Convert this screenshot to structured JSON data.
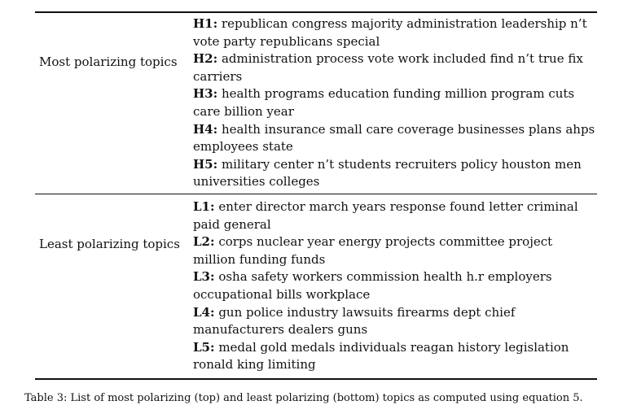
{
  "table": {
    "top_section": {
      "label": "Most polarizing topics",
      "topics": [
        {
          "id": "H1:",
          "words": "republican congress majority administration leadership n’t vote party republicans special"
        },
        {
          "id": "H2:",
          "words": "administration process vote work included find n’t true fix carriers"
        },
        {
          "id": "H3:",
          "words": "health programs education funding million program cuts care billion year"
        },
        {
          "id": "H4:",
          "words": "health insurance small care coverage businesses plans ahps employees state"
        },
        {
          "id": "H5:",
          "words": "military center n’t students recruiters policy houston men universities colleges"
        }
      ]
    },
    "bottom_section": {
      "label": "Least polarizing topics",
      "topics": [
        {
          "id": "L1:",
          "words": "enter director march years response found letter criminal paid general"
        },
        {
          "id": "L2:",
          "words": "corps nuclear year energy projects committee project million funding funds"
        },
        {
          "id": "L3:",
          "words": "osha safety workers commission health h.r employers occupational bills workplace"
        },
        {
          "id": "L4:",
          "words": "gun police industry lawsuits firearms dept chief manufacturers dealers guns"
        },
        {
          "id": "L5:",
          "words": "medal gold medals individuals reagan history legislation ronald king limiting"
        }
      ]
    }
  },
  "caption": "Table 3: List of most polarizing (top) and least polarizing (bottom) topics as computed using equation 5."
}
